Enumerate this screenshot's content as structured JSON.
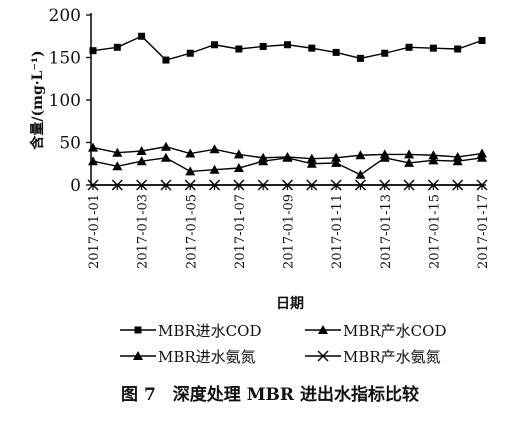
{
  "chart_data": {
    "type": "line",
    "caption": "图 7　深度处理 MBR 进出水指标比较",
    "xlabel": "日期",
    "ylabel": "含量/(mg·L⁻¹)",
    "ylim": [
      0,
      200
    ],
    "yticks": [
      0,
      50,
      100,
      150,
      200
    ],
    "grid": false,
    "legend_position": "bottom",
    "x": [
      "2017-01-01",
      "2017-01-02",
      "2017-01-03",
      "2017-01-04",
      "2017-01-05",
      "2017-01-06",
      "2017-01-07",
      "2017-01-08",
      "2017-01-09",
      "2017-01-10",
      "2017-01-11",
      "2017-01-12",
      "2017-01-13",
      "2017-01-14",
      "2017-01-15",
      "2017-01-16",
      "2017-01-17"
    ],
    "xticks": [
      "2017-01-01",
      "2017-01-03",
      "2017-01-05",
      "2017-01-07",
      "2017-01-09",
      "2017-01-11",
      "2017-01-13",
      "2017-01-15",
      "2017-01-17"
    ],
    "series": [
      {
        "name": "MBR进水COD",
        "marker": "square",
        "values": [
          158,
          162,
          175,
          147,
          155,
          165,
          160,
          163,
          165,
          161,
          156,
          149,
          155,
          162,
          161,
          160,
          170
        ]
      },
      {
        "name": "MBR产水COD",
        "marker": "triangle",
        "values": [
          28,
          22,
          28,
          32,
          16,
          18,
          20,
          28,
          32,
          25,
          26,
          12,
          32,
          26,
          29,
          28,
          32
        ]
      },
      {
        "name": "MBR进水氨氮",
        "marker": "triangle",
        "values": [
          44,
          38,
          40,
          45,
          37,
          42,
          36,
          32,
          33,
          31,
          32,
          35,
          36,
          36,
          35,
          33,
          37
        ]
      },
      {
        "name": "MBR产水氨氮",
        "marker": "x",
        "values": [
          0,
          0,
          0,
          0,
          0,
          0,
          0,
          0,
          0,
          0,
          0,
          0,
          0,
          0,
          0,
          0,
          0
        ]
      }
    ]
  }
}
